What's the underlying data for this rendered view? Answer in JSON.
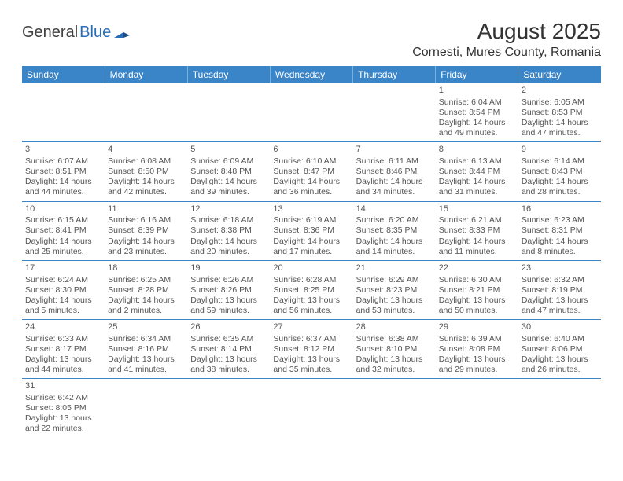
{
  "logo": {
    "general": "General",
    "blue": "Blue"
  },
  "title": "August 2025",
  "location": "Cornesti, Mures County, Romania",
  "colors": {
    "header_bg": "#3a84c8",
    "header_text": "#ffffff",
    "grid_line": "#3a84c8",
    "body_text": "#555555",
    "logo_gray": "#414141",
    "logo_blue": "#2a6db6"
  },
  "columns": [
    "Sunday",
    "Monday",
    "Tuesday",
    "Wednesday",
    "Thursday",
    "Friday",
    "Saturday"
  ],
  "weeks": [
    [
      null,
      null,
      null,
      null,
      null,
      {
        "n": "1",
        "sr": "6:04 AM",
        "ss": "8:54 PM",
        "dh": "14",
        "dm": "49"
      },
      {
        "n": "2",
        "sr": "6:05 AM",
        "ss": "8:53 PM",
        "dh": "14",
        "dm": "47"
      }
    ],
    [
      {
        "n": "3",
        "sr": "6:07 AM",
        "ss": "8:51 PM",
        "dh": "14",
        "dm": "44"
      },
      {
        "n": "4",
        "sr": "6:08 AM",
        "ss": "8:50 PM",
        "dh": "14",
        "dm": "42"
      },
      {
        "n": "5",
        "sr": "6:09 AM",
        "ss": "8:48 PM",
        "dh": "14",
        "dm": "39"
      },
      {
        "n": "6",
        "sr": "6:10 AM",
        "ss": "8:47 PM",
        "dh": "14",
        "dm": "36"
      },
      {
        "n": "7",
        "sr": "6:11 AM",
        "ss": "8:46 PM",
        "dh": "14",
        "dm": "34"
      },
      {
        "n": "8",
        "sr": "6:13 AM",
        "ss": "8:44 PM",
        "dh": "14",
        "dm": "31"
      },
      {
        "n": "9",
        "sr": "6:14 AM",
        "ss": "8:43 PM",
        "dh": "14",
        "dm": "28"
      }
    ],
    [
      {
        "n": "10",
        "sr": "6:15 AM",
        "ss": "8:41 PM",
        "dh": "14",
        "dm": "25"
      },
      {
        "n": "11",
        "sr": "6:16 AM",
        "ss": "8:39 PM",
        "dh": "14",
        "dm": "23"
      },
      {
        "n": "12",
        "sr": "6:18 AM",
        "ss": "8:38 PM",
        "dh": "14",
        "dm": "20"
      },
      {
        "n": "13",
        "sr": "6:19 AM",
        "ss": "8:36 PM",
        "dh": "14",
        "dm": "17"
      },
      {
        "n": "14",
        "sr": "6:20 AM",
        "ss": "8:35 PM",
        "dh": "14",
        "dm": "14"
      },
      {
        "n": "15",
        "sr": "6:21 AM",
        "ss": "8:33 PM",
        "dh": "14",
        "dm": "11"
      },
      {
        "n": "16",
        "sr": "6:23 AM",
        "ss": "8:31 PM",
        "dh": "14",
        "dm": "8"
      }
    ],
    [
      {
        "n": "17",
        "sr": "6:24 AM",
        "ss": "8:30 PM",
        "dh": "14",
        "dm": "5"
      },
      {
        "n": "18",
        "sr": "6:25 AM",
        "ss": "8:28 PM",
        "dh": "14",
        "dm": "2"
      },
      {
        "n": "19",
        "sr": "6:26 AM",
        "ss": "8:26 PM",
        "dh": "13",
        "dm": "59"
      },
      {
        "n": "20",
        "sr": "6:28 AM",
        "ss": "8:25 PM",
        "dh": "13",
        "dm": "56"
      },
      {
        "n": "21",
        "sr": "6:29 AM",
        "ss": "8:23 PM",
        "dh": "13",
        "dm": "53"
      },
      {
        "n": "22",
        "sr": "6:30 AM",
        "ss": "8:21 PM",
        "dh": "13",
        "dm": "50"
      },
      {
        "n": "23",
        "sr": "6:32 AM",
        "ss": "8:19 PM",
        "dh": "13",
        "dm": "47"
      }
    ],
    [
      {
        "n": "24",
        "sr": "6:33 AM",
        "ss": "8:17 PM",
        "dh": "13",
        "dm": "44"
      },
      {
        "n": "25",
        "sr": "6:34 AM",
        "ss": "8:16 PM",
        "dh": "13",
        "dm": "41"
      },
      {
        "n": "26",
        "sr": "6:35 AM",
        "ss": "8:14 PM",
        "dh": "13",
        "dm": "38"
      },
      {
        "n": "27",
        "sr": "6:37 AM",
        "ss": "8:12 PM",
        "dh": "13",
        "dm": "35"
      },
      {
        "n": "28",
        "sr": "6:38 AM",
        "ss": "8:10 PM",
        "dh": "13",
        "dm": "32"
      },
      {
        "n": "29",
        "sr": "6:39 AM",
        "ss": "8:08 PM",
        "dh": "13",
        "dm": "29"
      },
      {
        "n": "30",
        "sr": "6:40 AM",
        "ss": "8:06 PM",
        "dh": "13",
        "dm": "26"
      }
    ],
    [
      {
        "n": "31",
        "sr": "6:42 AM",
        "ss": "8:05 PM",
        "dh": "13",
        "dm": "22"
      },
      null,
      null,
      null,
      null,
      null,
      null
    ]
  ],
  "labels": {
    "sunrise_prefix": "Sunrise: ",
    "sunset_prefix": "Sunset: ",
    "daylight_prefix": "Daylight: ",
    "hours_word": " hours",
    "and_word": "and ",
    "minutes_word": " minutes."
  }
}
